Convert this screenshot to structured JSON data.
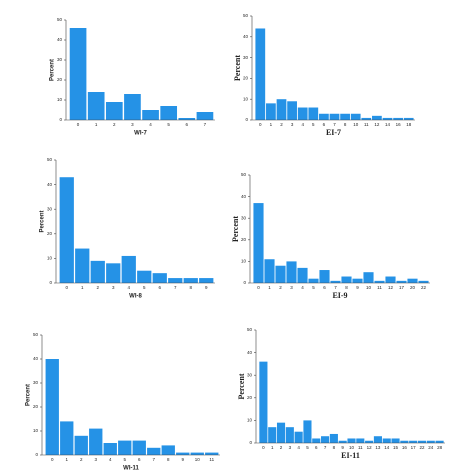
{
  "chart_data": [
    {
      "type": "bar",
      "x_label": "WI-7",
      "y_label": "Percent",
      "categories": [
        "0",
        "1",
        "2",
        "3",
        "4",
        "5",
        "6",
        "7"
      ],
      "values": [
        46,
        14,
        9,
        13,
        5,
        7,
        1,
        4
      ],
      "color": "#2592e6",
      "ylim": [
        0,
        50
      ],
      "yticks": [
        0,
        10,
        20,
        30,
        40,
        50
      ]
    },
    {
      "type": "bar",
      "x_label": "EI-7",
      "y_label": "Percent",
      "categories": [
        "0",
        "1",
        "2",
        "3",
        "4",
        "5",
        "6",
        "7",
        "8",
        "10",
        "11",
        "12",
        "14",
        "16",
        "18"
      ],
      "values": [
        44,
        8,
        10,
        9,
        6,
        6,
        3,
        3,
        3,
        3,
        1,
        2,
        1,
        1,
        1
      ],
      "color": "#2592e6",
      "ylim": [
        0,
        50
      ],
      "yticks": [
        0,
        10,
        20,
        30,
        40,
        50
      ]
    },
    {
      "type": "bar",
      "x_label": "WI-8",
      "y_label": "Percent",
      "categories": [
        "0",
        "1",
        "2",
        "3",
        "4",
        "5",
        "6",
        "7",
        "8",
        "9"
      ],
      "values": [
        43,
        14,
        9,
        8,
        11,
        5,
        4,
        2,
        2,
        2
      ],
      "color": "#2592e6",
      "ylim": [
        0,
        50
      ],
      "yticks": [
        0,
        10,
        20,
        30,
        40,
        50
      ]
    },
    {
      "type": "bar",
      "x_label": "EI-9",
      "y_label": "Percent",
      "categories": [
        "0",
        "1",
        "2",
        "3",
        "4",
        "5",
        "6",
        "7",
        "8",
        "9",
        "10",
        "11",
        "12",
        "17",
        "20",
        "22"
      ],
      "values": [
        37,
        11,
        8,
        10,
        7,
        2,
        6,
        1,
        3,
        2,
        5,
        1,
        3,
        1,
        2,
        1
      ],
      "color": "#2592e6",
      "ylim": [
        0,
        50
      ],
      "yticks": [
        0,
        10,
        20,
        30,
        40,
        50
      ]
    },
    {
      "type": "bar",
      "x_label": "WI-11",
      "y_label": "Percent",
      "categories": [
        "0",
        "1",
        "2",
        "3",
        "4",
        "5",
        "6",
        "7",
        "8",
        "9",
        "10",
        "11"
      ],
      "values": [
        40,
        14,
        8,
        11,
        5,
        6,
        6,
        3,
        4,
        1,
        1,
        1
      ],
      "color": "#2592e6",
      "ylim": [
        0,
        50
      ],
      "yticks": [
        0,
        10,
        20,
        30,
        40,
        50
      ]
    },
    {
      "type": "bar",
      "x_label": "EI-11",
      "y_label": "Percent",
      "categories": [
        "0",
        "1",
        "2",
        "3",
        "4",
        "5",
        "6",
        "7",
        "8",
        "9",
        "10",
        "11",
        "12",
        "13",
        "14",
        "15",
        "16",
        "17",
        "22",
        "24",
        "28"
      ],
      "values": [
        36,
        7,
        9,
        7,
        5,
        10,
        2,
        3,
        4,
        1,
        2,
        2,
        1,
        3,
        2,
        2,
        1,
        1,
        1,
        1,
        1
      ],
      "color": "#2592e6",
      "ylim": [
        0,
        50
      ],
      "yticks": [
        0,
        10,
        20,
        30,
        40,
        50
      ]
    }
  ]
}
